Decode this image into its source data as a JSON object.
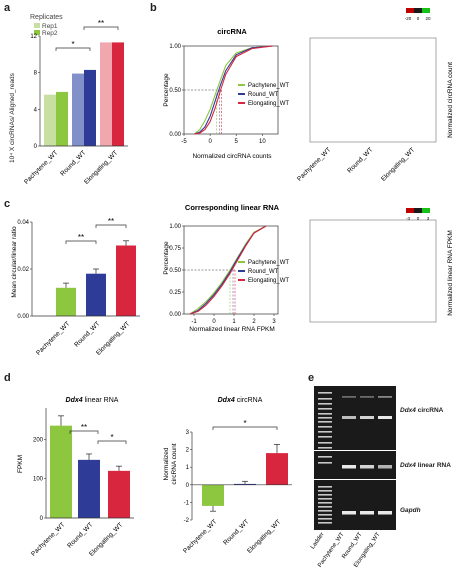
{
  "colors": {
    "green": "#8dc63f",
    "green_light": "#c7e0a2",
    "blue": "#2e3b97",
    "blue_light": "#8190c8",
    "red": "#d7263d",
    "red_light": "#f0a7ad",
    "purple": "#7b5aa6",
    "heat_low": "#c00000",
    "heat_mid": "#1a1a1a",
    "heat_high": "#16c216"
  },
  "panels": {
    "a": {
      "label": "a"
    },
    "b": {
      "label": "b"
    },
    "c": {
      "label": "c"
    },
    "d": {
      "label": "d"
    },
    "e": {
      "label": "e"
    }
  },
  "panel_a": {
    "legend_title": "Replicates",
    "legend_items": [
      "Rep1",
      "Rep2"
    ],
    "ylabel": "10⁴ X circRNAs/ Aligned_reads",
    "sig": [
      "*",
      "**"
    ]
  },
  "panel_b": {
    "title": "circRNA",
    "xlabel": "Normalized circRNA counts",
    "ylabel": "Percentage",
    "legend": [
      "Pachytene_WT",
      "Round_WT",
      "Elongating_WT"
    ],
    "heatmap_label": "Normalized circRNA count",
    "heatmap_scale": [
      "-20",
      "0",
      "20"
    ]
  },
  "panel_c": {
    "ylabel": "Mean circular/linear ratio",
    "sig": [
      "**",
      "**"
    ],
    "cdf_title": "Corresponding linear RNA",
    "cdf_xlabel": "Normalized linear RNA FPKM",
    "cdf_ylabel": "Percentage",
    "legend": [
      "Pachytene_WT",
      "Round_WT",
      "Elongating_WT"
    ],
    "heatmap_label": "Normalized linear RNA FPKM",
    "heatmap_scale": [
      "-3",
      "0",
      "3"
    ]
  },
  "panel_d": {
    "left_title_gene": "Ddx4",
    "left_title_rest": " linear RNA",
    "left_ylabel": "FPKM",
    "left_sig": [
      "**",
      "*"
    ],
    "right_title_gene": "Ddx4",
    "right_title_rest": " circRNA",
    "right_ylabel_1": "Normalized",
    "right_ylabel_2": "circRNA count",
    "right_sig": [
      "*"
    ]
  },
  "panel_e": {
    "band_labels": [
      {
        "gene": "Ddx4",
        "rest": " circRNA"
      },
      {
        "gene": "Ddx4",
        "rest": " linear RNA"
      },
      {
        "gene": "Gapdh",
        "rest": ""
      }
    ],
    "lane_labels": [
      "Ladder",
      "Pachytene_WT",
      "Round_WT",
      "Elongating_WT"
    ]
  },
  "categories": [
    "Pachytene_WT",
    "Round_WT",
    "Elongating_WT"
  ],
  "chart_data": [
    {
      "type": "bar",
      "id": "a",
      "categories": [
        "Pachytene_WT",
        "Round_WT",
        "Elongating_WT"
      ],
      "series": [
        {
          "name": "Rep1",
          "values": [
            5.6,
            7.9,
            11.3
          ]
        },
        {
          "name": "Rep2",
          "values": [
            5.9,
            8.3,
            11.3
          ]
        }
      ],
      "ylabel": "10⁴ X circRNAs/ Aligned_reads",
      "ylim": [
        0,
        12
      ],
      "yticks": [
        0,
        4,
        8,
        12
      ]
    },
    {
      "type": "line",
      "id": "b_cdf",
      "title": "circRNA",
      "xlabel": "Normalized circRNA counts",
      "ylabel": "Percentage",
      "xlim": [
        -5,
        13
      ],
      "ylim": [
        0,
        1
      ],
      "xticks": [
        -5,
        0,
        5,
        10
      ],
      "yticks": [
        0.0,
        0.5,
        1.0
      ],
      "series": [
        {
          "name": "Pachytene_WT",
          "x": [
            -3,
            -2,
            -1,
            0,
            1,
            2,
            3,
            5,
            8,
            12
          ],
          "y": [
            0.0,
            0.05,
            0.15,
            0.28,
            0.45,
            0.62,
            0.78,
            0.92,
            0.98,
            1.0
          ]
        },
        {
          "name": "Round_WT",
          "x": [
            -3,
            -2,
            -1,
            0,
            1,
            2,
            3,
            5,
            8,
            12
          ],
          "y": [
            0.0,
            0.02,
            0.08,
            0.2,
            0.38,
            0.56,
            0.72,
            0.9,
            0.98,
            1.0
          ]
        },
        {
          "name": "Elongating_WT",
          "x": [
            -3,
            -2,
            -1,
            0,
            1,
            2,
            3,
            5,
            8,
            12
          ],
          "y": [
            0.0,
            0.01,
            0.05,
            0.14,
            0.3,
            0.5,
            0.68,
            0.88,
            0.97,
            1.0
          ]
        }
      ]
    },
    {
      "type": "bar",
      "id": "c",
      "categories": [
        "Pachytene_WT",
        "Round_WT",
        "Elongating_WT"
      ],
      "values": [
        0.012,
        0.018,
        0.03
      ],
      "errors": [
        0.002,
        0.002,
        0.002
      ],
      "ylabel": "Mean circular/linear ratio",
      "ylim": [
        0,
        0.04
      ],
      "yticks": [
        0.0,
        0.02,
        0.04
      ]
    },
    {
      "type": "line",
      "id": "c_cdf",
      "title": "Corresponding linear RNA",
      "xlabel": "Normalized linear RNA FPKM",
      "ylabel": "Percentage",
      "xlim": [
        -1.5,
        3.2
      ],
      "ylim": [
        0,
        1
      ],
      "xticks": [
        -1,
        0,
        1,
        2,
        3
      ],
      "yticks": [
        0.0,
        0.25,
        0.5,
        0.75,
        1.0
      ],
      "series": [
        {
          "name": "Pachytene_WT",
          "x": [
            -1.2,
            -0.8,
            -0.4,
            0,
            0.4,
            0.8,
            1.2,
            1.6,
            2.0,
            2.6
          ],
          "y": [
            0.0,
            0.06,
            0.14,
            0.24,
            0.36,
            0.5,
            0.65,
            0.8,
            0.93,
            1.0
          ]
        },
        {
          "name": "Round_WT",
          "x": [
            -1.2,
            -0.8,
            -0.4,
            0,
            0.4,
            0.8,
            1.2,
            1.6,
            2.0,
            2.6
          ],
          "y": [
            0.0,
            0.04,
            0.12,
            0.22,
            0.34,
            0.48,
            0.64,
            0.79,
            0.92,
            1.0
          ]
        },
        {
          "name": "Elongating_WT",
          "x": [
            -1.2,
            -0.8,
            -0.4,
            0,
            0.4,
            0.8,
            1.2,
            1.6,
            2.0,
            2.6
          ],
          "y": [
            0.0,
            0.03,
            0.1,
            0.2,
            0.32,
            0.46,
            0.62,
            0.78,
            0.92,
            1.0
          ]
        }
      ]
    },
    {
      "type": "bar",
      "id": "d_left",
      "title": "Ddx4 linear RNA",
      "categories": [
        "Pachytene_WT",
        "Round_WT",
        "Elongating_WT"
      ],
      "values": [
        235,
        148,
        120
      ],
      "errors": [
        25,
        15,
        12
      ],
      "ylabel": "FPKM",
      "ylim": [
        0,
        280
      ],
      "yticks": [
        0,
        100,
        200
      ]
    },
    {
      "type": "bar",
      "id": "d_right",
      "title": "Ddx4 circRNA",
      "categories": [
        "Pachytene_WT",
        "Round_WT",
        "Elongating_WT"
      ],
      "values": [
        -1.2,
        0.05,
        1.8
      ],
      "errors": [
        0.3,
        0.15,
        0.5
      ],
      "ylabel": "Normalized circRNA count",
      "ylim": [
        -2,
        3
      ],
      "yticks": [
        -2,
        -1,
        0,
        1,
        2,
        3
      ]
    }
  ]
}
